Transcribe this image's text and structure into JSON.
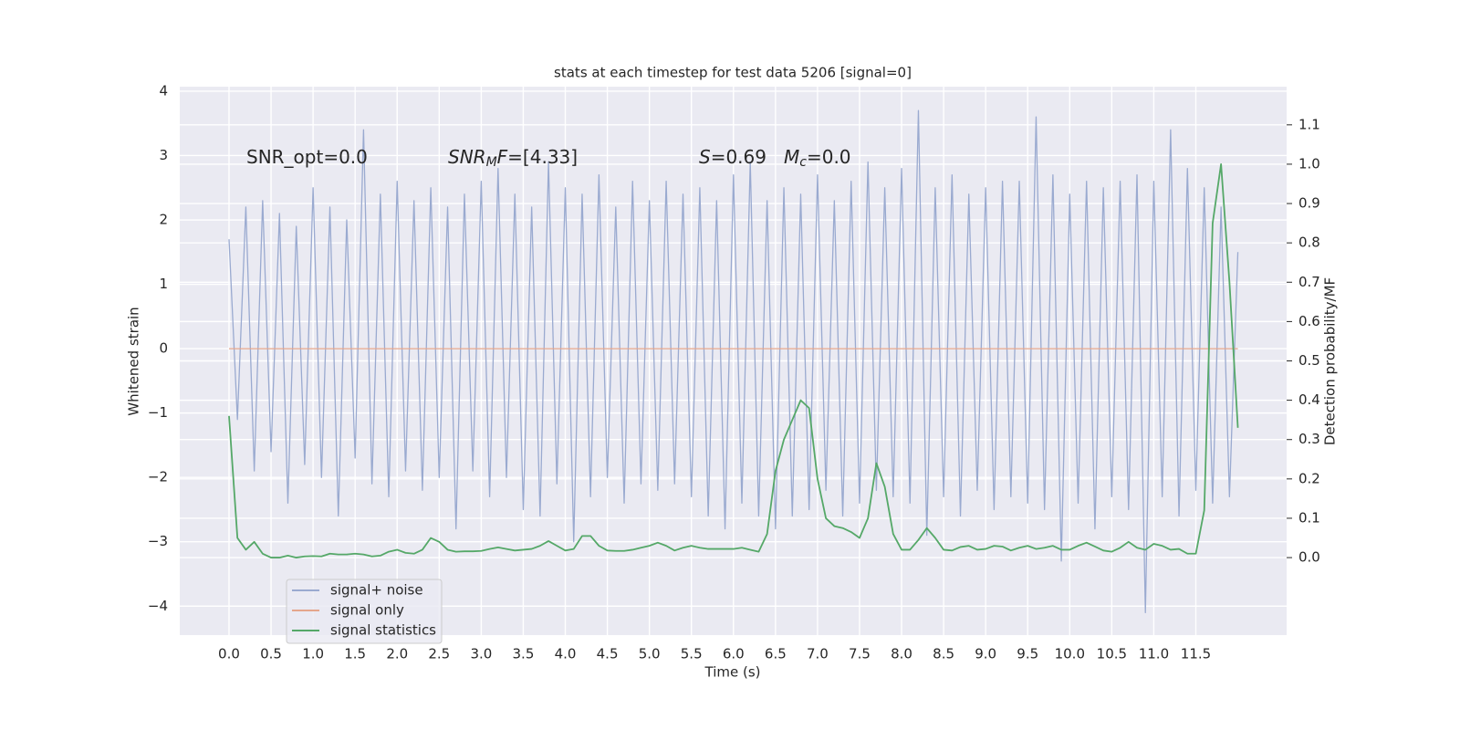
{
  "chart_data": {
    "type": "line",
    "title": "stats at each timestep for test data 5206 [signal=0]",
    "xlabel": "Time (s)",
    "ylabel": "Whitened strain",
    "y2label": "Detection probability/MF",
    "grid": true,
    "legend": "lower left",
    "xlim": [
      -0.586,
      12.58
    ],
    "ylim": [
      -4.45,
      4.07
    ],
    "y2lim": [
      -0.197,
      1.197
    ],
    "xticks": [
      {
        "value": 0,
        "label": "0.0"
      },
      {
        "value": 0.5,
        "label": "0.5"
      },
      {
        "value": 1,
        "label": "1.0"
      },
      {
        "value": 1.5,
        "label": "1.5"
      },
      {
        "value": 2,
        "label": "2.0"
      },
      {
        "value": 2.5,
        "label": "2.5"
      },
      {
        "value": 3,
        "label": "3.0"
      },
      {
        "value": 3.5,
        "label": "3.5"
      },
      {
        "value": 4,
        "label": "4.0"
      },
      {
        "value": 4.5,
        "label": "4.5"
      },
      {
        "value": 5,
        "label": "5.0"
      },
      {
        "value": 5.5,
        "label": "5.5"
      },
      {
        "value": 6,
        "label": "6.0"
      },
      {
        "value": 6.5,
        "label": "6.5"
      },
      {
        "value": 7,
        "label": "7.0"
      },
      {
        "value": 7.5,
        "label": "7.5"
      },
      {
        "value": 8,
        "label": "8.0"
      },
      {
        "value": 8.5,
        "label": "8.5"
      },
      {
        "value": 9,
        "label": "9.0"
      },
      {
        "value": 9.5,
        "label": "9.5"
      },
      {
        "value": 10,
        "label": "10.0"
      },
      {
        "value": 10.5,
        "label": "10.5"
      },
      {
        "value": 11,
        "label": "11.0"
      },
      {
        "value": 11.5,
        "label": "11.5"
      }
    ],
    "yticks": [
      {
        "value": -4,
        "label": "−4"
      },
      {
        "value": -3,
        "label": "−3"
      },
      {
        "value": -2,
        "label": "−2"
      },
      {
        "value": -1,
        "label": "−1"
      },
      0,
      1,
      2,
      3,
      4
    ],
    "y2ticks": [
      {
        "value": 0,
        "label": "0.0"
      },
      {
        "value": 0.1,
        "label": "0.1"
      },
      {
        "value": 0.2,
        "label": "0.2"
      },
      {
        "value": 0.3,
        "label": "0.3"
      },
      {
        "value": 0.4,
        "label": "0.4"
      },
      {
        "value": 0.5,
        "label": "0.5"
      },
      {
        "value": 0.6,
        "label": "0.6"
      },
      {
        "value": 0.7,
        "label": "0.7"
      },
      {
        "value": 0.8,
        "label": "0.8"
      },
      {
        "value": 0.9,
        "label": "0.9"
      },
      {
        "value": 1,
        "label": "1.0"
      },
      {
        "value": 1.1,
        "label": "1.1"
      }
    ],
    "annotations": [
      [
        {
          "text": "SNR_opt=0.0"
        }
      ],
      [
        {
          "text": "SNR",
          "italic": true
        },
        {
          "text": "M",
          "italic": true,
          "sub": true
        },
        {
          "text": "F",
          "italic": true
        },
        {
          "text": "=[4.33]"
        }
      ],
      [
        {
          "text": "S",
          "italic": true
        },
        {
          "text": "=0.69"
        }
      ],
      [
        {
          "text": "M",
          "italic": true
        },
        {
          "text": "c",
          "italic": true,
          "sub": true
        },
        {
          "text": "=0.0"
        }
      ]
    ],
    "x": [
      0,
      0.1,
      0.2,
      0.3,
      0.4,
      0.5,
      0.6,
      0.7,
      0.8,
      0.9,
      1,
      1.1,
      1.2,
      1.3,
      1.4,
      1.5,
      1.6,
      1.7,
      1.8,
      1.9,
      2,
      2.1,
      2.2,
      2.3,
      2.4,
      2.5,
      2.6,
      2.7,
      2.8,
      2.9,
      3,
      3.1,
      3.2,
      3.3,
      3.4,
      3.5,
      3.6,
      3.7,
      3.8,
      3.9,
      4,
      4.1,
      4.2,
      4.3,
      4.4,
      4.5,
      4.6,
      4.7,
      4.8,
      4.9,
      5,
      5.1,
      5.2,
      5.3,
      5.4,
      5.5,
      5.6,
      5.7,
      5.8,
      5.9,
      6,
      6.1,
      6.2,
      6.3,
      6.4,
      6.5,
      6.6,
      6.7,
      6.8,
      6.9,
      7,
      7.1,
      7.2,
      7.3,
      7.4,
      7.5,
      7.6,
      7.7,
      7.8,
      7.9,
      8,
      8.1,
      8.2,
      8.3,
      8.4,
      8.5,
      8.6,
      8.7,
      8.8,
      8.9,
      9,
      9.1,
      9.2,
      9.3,
      9.4,
      9.5,
      9.6,
      9.7,
      9.8,
      9.9,
      10,
      10.1,
      10.2,
      10.3,
      10.4,
      10.5,
      10.6,
      10.7,
      10.8,
      10.9,
      11,
      11.1,
      11.2,
      11.3,
      11.4,
      11.5,
      11.6,
      11.7,
      11.8,
      11.9,
      12
    ],
    "series": [
      {
        "name": "signal+ noise",
        "color": "#9aaad0",
        "values": [
          1.7,
          -1.1,
          2.2,
          -1.9,
          2.3,
          -1.6,
          2.1,
          -2.4,
          1.9,
          -1.8,
          2.5,
          -2.0,
          2.2,
          -2.6,
          2.0,
          -1.7,
          3.4,
          -2.1,
          2.4,
          -2.3,
          2.6,
          -1.9,
          2.3,
          -2.2,
          2.5,
          -2.0,
          2.2,
          -2.8,
          2.4,
          -1.9,
          2.6,
          -2.3,
          2.8,
          -2.0,
          2.4,
          -2.5,
          2.2,
          -2.6,
          2.9,
          -2.1,
          2.5,
          -3.0,
          2.4,
          -2.3,
          2.7,
          -2.0,
          2.2,
          -2.4,
          2.6,
          -2.1,
          2.3,
          -2.2,
          2.6,
          -2.1,
          2.4,
          -2.3,
          2.5,
          -2.6,
          2.3,
          -2.8,
          2.7,
          -2.4,
          2.9,
          -2.6,
          2.3,
          -2.8,
          2.5,
          -2.6,
          2.4,
          -2.5,
          2.7,
          -2.2,
          2.3,
          -2.6,
          2.6,
          -2.4,
          2.9,
          -2.2,
          2.5,
          -2.3,
          2.8,
          -2.4,
          3.7,
          -2.9,
          2.5,
          -2.3,
          2.7,
          -2.6,
          2.4,
          -2.2,
          2.5,
          -2.5,
          2.6,
          -2.3,
          2.6,
          -2.4,
          3.6,
          -2.5,
          2.7,
          -3.3,
          2.4,
          -2.4,
          2.6,
          -2.8,
          2.5,
          -2.3,
          2.6,
          -2.5,
          2.7,
          -4.1,
          2.6,
          -2.3,
          3.4,
          -2.6,
          2.8,
          -2.2,
          2.5,
          -2.4,
          2.2,
          -2.3,
          1.5
        ]
      },
      {
        "name": "signal only",
        "color": "#e5a68c",
        "values": [
          0,
          0,
          0,
          0,
          0,
          0,
          0,
          0,
          0,
          0,
          0,
          0,
          0,
          0,
          0,
          0,
          0,
          0,
          0,
          0,
          0,
          0,
          0,
          0,
          0,
          0,
          0,
          0,
          0,
          0,
          0,
          0,
          0,
          0,
          0,
          0,
          0,
          0,
          0,
          0,
          0,
          0,
          0,
          0,
          0,
          0,
          0,
          0,
          0,
          0,
          0,
          0,
          0,
          0,
          0,
          0,
          0,
          0,
          0,
          0,
          0,
          0,
          0,
          0,
          0,
          0,
          0,
          0,
          0,
          0,
          0,
          0,
          0,
          0,
          0,
          0,
          0,
          0,
          0,
          0,
          0,
          0,
          0,
          0,
          0,
          0,
          0,
          0,
          0,
          0,
          0,
          0,
          0,
          0,
          0,
          0,
          0,
          0,
          0,
          0,
          0,
          0,
          0,
          0,
          0,
          0,
          0,
          0,
          0,
          0,
          0,
          0,
          0,
          0,
          0,
          0,
          0,
          0,
          0,
          0,
          0
        ]
      },
      {
        "name": "signal statistics",
        "color": "#55a868",
        "axis": "y2",
        "values": [
          0.36,
          0.05,
          0.02,
          0.04,
          0.01,
          0.0,
          0.0,
          0.005,
          0.0,
          0.003,
          0.004,
          0.003,
          0.01,
          0.008,
          0.008,
          0.01,
          0.008,
          0.003,
          0.005,
          0.015,
          0.02,
          0.012,
          0.01,
          0.02,
          0.05,
          0.04,
          0.02,
          0.015,
          0.016,
          0.016,
          0.017,
          0.022,
          0.026,
          0.022,
          0.018,
          0.02,
          0.022,
          0.03,
          0.042,
          0.03,
          0.018,
          0.022,
          0.055,
          0.055,
          0.03,
          0.018,
          0.017,
          0.017,
          0.02,
          0.025,
          0.03,
          0.038,
          0.03,
          0.018,
          0.025,
          0.03,
          0.025,
          0.022,
          0.022,
          0.022,
          0.022,
          0.025,
          0.02,
          0.015,
          0.06,
          0.22,
          0.3,
          0.35,
          0.4,
          0.38,
          0.2,
          0.1,
          0.08,
          0.075,
          0.065,
          0.05,
          0.1,
          0.24,
          0.18,
          0.06,
          0.02,
          0.02,
          0.045,
          0.075,
          0.05,
          0.02,
          0.018,
          0.027,
          0.03,
          0.02,
          0.022,
          0.03,
          0.028,
          0.018,
          0.025,
          0.03,
          0.022,
          0.025,
          0.03,
          0.02,
          0.02,
          0.03,
          0.038,
          0.028,
          0.018,
          0.015,
          0.025,
          0.04,
          0.025,
          0.02,
          0.035,
          0.03,
          0.02,
          0.022,
          0.01,
          0.01,
          0.12,
          0.85,
          1.0,
          0.7,
          0.33
        ]
      }
    ]
  }
}
